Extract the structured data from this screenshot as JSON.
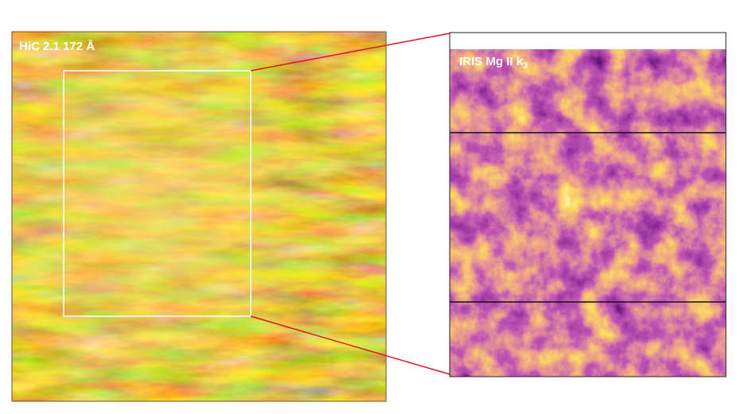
{
  "left_panel": {
    "label": "HiC 2.1 172 Å"
  },
  "right_panel": {
    "label": "IRIS Mg II k",
    "label_subscript": "3"
  }
}
